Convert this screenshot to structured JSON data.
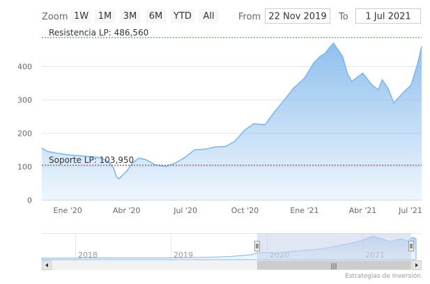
{
  "range_selector": {
    "zoom_label": "Zoom",
    "buttons": [
      "1W",
      "1M",
      "3M",
      "6M",
      "YTD",
      "All"
    ],
    "from_label": "From",
    "from_value": "22 Nov 2019",
    "to_label": "To",
    "to_value": "1 Jul 2021"
  },
  "plot_lines": {
    "resistance": {
      "label": "Resistencia LP: 486,560",
      "value": 486.56,
      "color": "#2e8b2e"
    },
    "support": {
      "label": "Soporte LP: 103,950",
      "value": 103.95,
      "color": "#8b1a2b"
    }
  },
  "navigator": {
    "year_labels": [
      "2018",
      "2019",
      "2020",
      "2021"
    ],
    "scrollbar_grip": "|||"
  },
  "credits": "Estrategias de Inversión",
  "colors": {
    "series_line": "#7cb5ec",
    "series_fill": "#7cb5ec",
    "button_bg": "#f7f7f7",
    "navigator_mask": "#ccd6eb"
  },
  "chart_data": {
    "type": "area",
    "x_tick_labels": [
      "Ene '20",
      "Abr '20",
      "Jul '20",
      "Oct '20",
      "Ene '21",
      "Abr '21",
      "Jul '21"
    ],
    "y_ticks": [
      0,
      100,
      200,
      300,
      400
    ],
    "ylim": [
      0,
      486.56
    ],
    "x_start": "2019-11-22",
    "x_end": "2021-07-01",
    "grid": true,
    "series": [
      {
        "x": [
          "2019-11-22",
          "2019-12-01",
          "2019-12-15",
          "2020-01-01",
          "2020-01-15",
          "2020-02-01",
          "2020-02-15",
          "2020-02-25",
          "2020-03-05",
          "2020-03-12",
          "2020-03-16",
          "2020-03-20",
          "2020-03-25",
          "2020-04-01",
          "2020-04-10",
          "2020-04-20",
          "2020-05-01",
          "2020-05-15",
          "2020-06-01",
          "2020-06-15",
          "2020-07-01",
          "2020-07-15",
          "2020-08-01",
          "2020-08-15",
          "2020-09-01",
          "2020-09-15",
          "2020-10-01",
          "2020-10-15",
          "2020-11-01",
          "2020-11-15",
          "2020-12-01",
          "2020-12-15",
          "2021-01-01",
          "2021-01-15",
          "2021-01-25",
          "2021-02-01",
          "2021-02-10",
          "2021-02-15",
          "2021-02-20",
          "2021-03-01",
          "2021-03-08",
          "2021-03-15",
          "2021-04-01",
          "2021-04-15",
          "2021-04-25",
          "2021-05-01",
          "2021-05-10",
          "2021-05-19",
          "2021-06-01",
          "2021-06-15",
          "2021-06-25",
          "2021-07-01"
        ],
        "values": [
          155,
          145,
          140,
          135,
          133,
          130,
          128,
          122,
          112,
          95,
          70,
          63,
          72,
          85,
          110,
          125,
          120,
          105,
          100,
          110,
          128,
          150,
          152,
          158,
          160,
          175,
          210,
          228,
          225,
          262,
          300,
          335,
          365,
          410,
          430,
          438,
          460,
          470,
          455,
          430,
          380,
          355,
          380,
          345,
          330,
          360,
          335,
          290,
          318,
          345,
          410,
          460
        ]
      }
    ]
  }
}
